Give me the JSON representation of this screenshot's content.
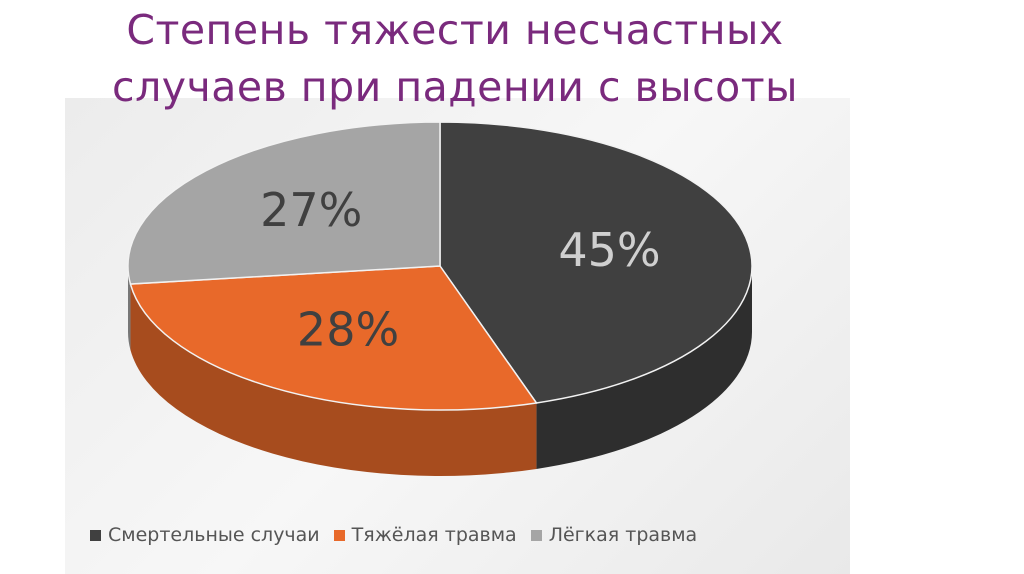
{
  "chart_data": {
    "type": "pie3d",
    "title": "Степень тяжести несчастных случаев при падении с высоты",
    "categories": [
      "Смертельные случаи",
      "Тяжёлая травма",
      "Лёгкая травма"
    ],
    "values": [
      45,
      28,
      27
    ],
    "value_labels": [
      "45%",
      "28%",
      "27%"
    ],
    "colors": [
      "#404040",
      "#e8692a",
      "#a5a5a5"
    ],
    "legend": "bottom"
  }
}
